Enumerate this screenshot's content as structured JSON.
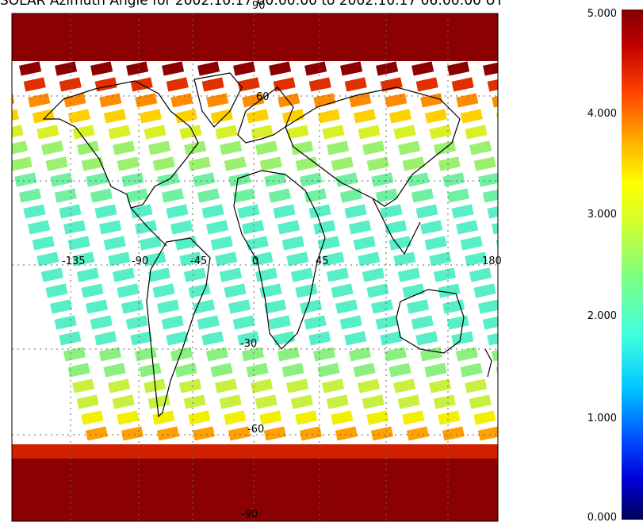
{
  "title": "SOLAR Azimuth Angle for 2002.10.17 00:00:00 to 2002.10.17 06:00:00 UT",
  "map": {
    "lon_labels": [
      "-135",
      "-90",
      "-45",
      "0",
      "45",
      "180"
    ],
    "lat_labels": [
      "30",
      "60",
      "-30",
      "-60",
      "-90"
    ],
    "lat_top_label": "90"
  },
  "colorbar": {
    "ticks": [
      "5.000",
      "4.000",
      "3.000",
      "2.000",
      "1.000",
      "0.000"
    ],
    "colors": [
      "#00005a",
      "#0000d8",
      "#0050ff",
      "#00c8ff",
      "#40ffe0",
      "#7fff7f",
      "#d0ff30",
      "#ffff00",
      "#ffb000",
      "#ff4000",
      "#c00000",
      "#800000"
    ]
  }
}
